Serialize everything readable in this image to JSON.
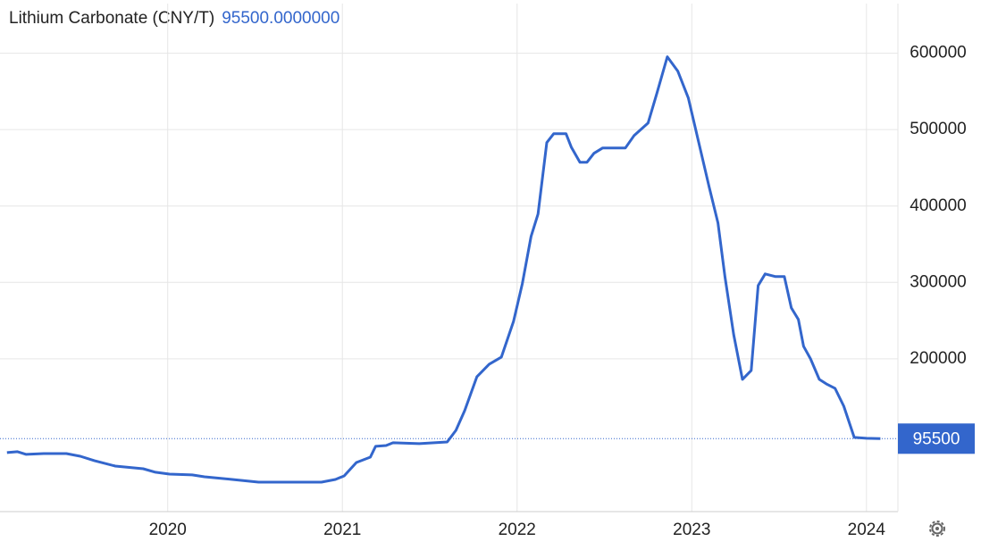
{
  "chart_data": {
    "type": "line",
    "title": "Lithium Carbonate (CNY/T)",
    "current": {
      "value": 95500,
      "label": "95500.0000000"
    },
    "color": "#3366cc",
    "grid": true,
    "x": [
      2019.08,
      2019.14,
      2019.19,
      2019.29,
      2019.42,
      2019.5,
      2019.58,
      2019.7,
      2019.86,
      2019.93,
      2020.01,
      2020.14,
      2020.21,
      2020.37,
      2020.52,
      2020.73,
      2020.88,
      2020.96,
      2021.01,
      2021.08,
      2021.16,
      2021.19,
      2021.25,
      2021.29,
      2021.44,
      2021.6,
      2021.65,
      2021.7,
      2021.77,
      2021.84,
      2021.91,
      2021.98,
      2022.03,
      2022.08,
      2022.12,
      2022.17,
      2022.21,
      2022.28,
      2022.31,
      2022.36,
      2022.4,
      2022.44,
      2022.49,
      2022.62,
      2022.67,
      2022.75,
      2022.8,
      2022.86,
      2022.92,
      2022.98,
      2023.04,
      2023.1,
      2023.15,
      2023.19,
      2023.24,
      2023.29,
      2023.34,
      2023.38,
      2023.42,
      2023.48,
      2023.53,
      2023.57,
      2023.61,
      2023.64,
      2023.68,
      2023.73,
      2023.77,
      2023.82,
      2023.87,
      2023.93,
      2024.0,
      2024.08
    ],
    "values": [
      77200,
      78400,
      74900,
      76000,
      76000,
      72500,
      66700,
      59600,
      56100,
      51500,
      49100,
      48000,
      45600,
      42100,
      38600,
      38600,
      38600,
      42100,
      46800,
      64300,
      71300,
      85400,
      86500,
      90100,
      88900,
      91200,
      106400,
      132200,
      176600,
      193000,
      202300,
      249100,
      298200,
      360200,
      389500,
      483000,
      494700,
      494700,
      477200,
      457300,
      457300,
      469000,
      476000,
      476000,
      492400,
      508800,
      547400,
      595300,
      576600,
      541500,
      483000,
      424600,
      377800,
      307600,
      231600,
      173100,
      184800,
      295900,
      311100,
      307600,
      307600,
      266700,
      251500,
      216400,
      200000,
      173100,
      167300,
      161400,
      138000,
      97100,
      95900,
      95500
    ],
    "xlim": [
      2019.04,
      2024.18
    ],
    "xticks": [
      2020,
      2021,
      2022,
      2023,
      2024
    ],
    "ylim": [
      0,
      665000
    ],
    "yticks": [
      200000,
      300000,
      400000,
      500000,
      600000
    ]
  }
}
